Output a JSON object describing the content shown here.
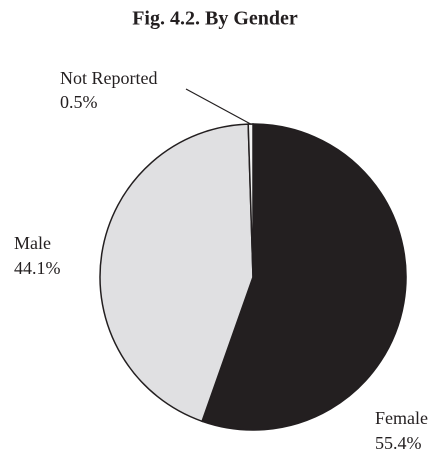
{
  "chart_data": {
    "type": "pie",
    "title": "Fig. 4.2. By Gender",
    "categories": [
      "Female",
      "Male",
      "Not Reported"
    ],
    "values": [
      55.4,
      44.1,
      0.5
    ],
    "value_labels": [
      "55.4%",
      "44.1%",
      "0.5%"
    ],
    "colors": [
      "#231f20",
      "#e0e0e2",
      "#f2f2f2"
    ]
  }
}
